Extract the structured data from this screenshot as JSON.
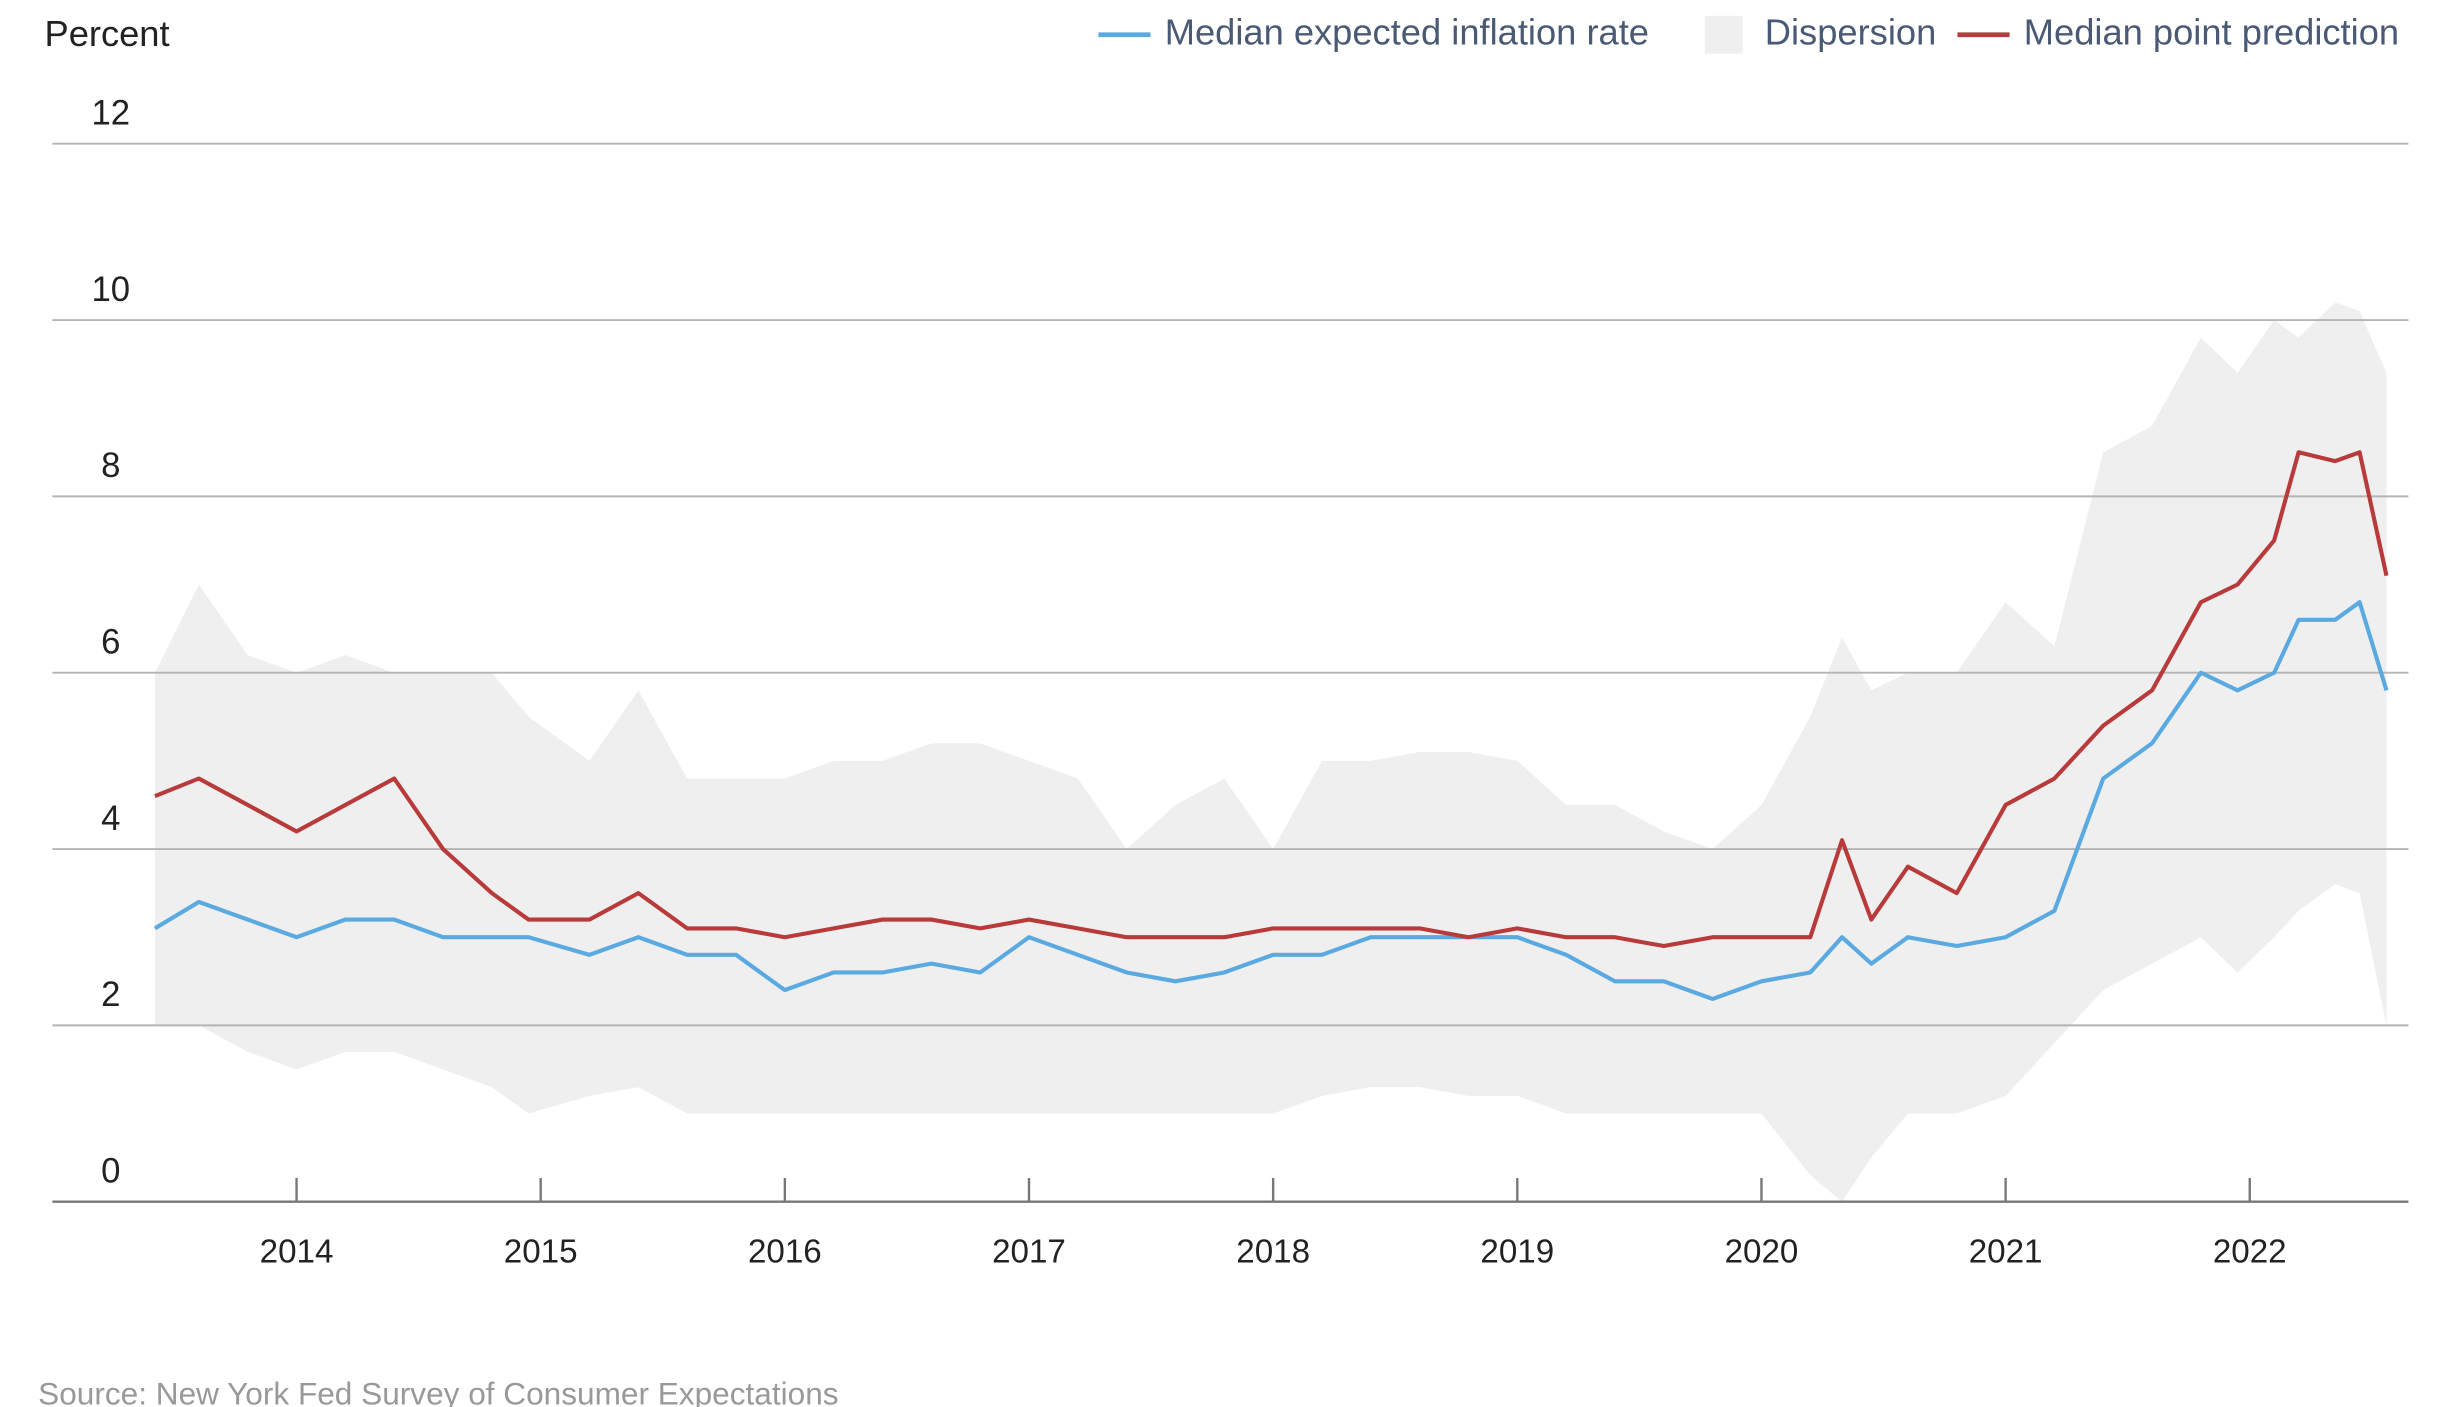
{
  "chart_data": {
    "type": "line",
    "y_label": "Percent",
    "source": "Source: New York Fed Survey of Consumer Expectations",
    "legend": "top-right",
    "grid": true,
    "xlim": [
      2013,
      2022.65
    ],
    "xticks": [
      2014,
      2015,
      2016,
      2017,
      2018,
      2019,
      2020,
      2021,
      2022
    ],
    "ylim": [
      0,
      12
    ],
    "yticks": [
      0,
      2,
      4,
      6,
      8,
      10,
      12
    ],
    "x": [
      2013.42,
      2013.6,
      2013.8,
      2014.0,
      2014.2,
      2014.4,
      2014.6,
      2014.8,
      2014.95,
      2015.2,
      2015.4,
      2015.6,
      2015.8,
      2016.0,
      2016.2,
      2016.4,
      2016.6,
      2016.8,
      2017.0,
      2017.2,
      2017.4,
      2017.6,
      2017.8,
      2018.0,
      2018.2,
      2018.4,
      2018.6,
      2018.8,
      2019.0,
      2019.2,
      2019.4,
      2019.6,
      2019.8,
      2020.0,
      2020.2,
      2020.33,
      2020.45,
      2020.6,
      2020.8,
      2021.0,
      2021.2,
      2021.4,
      2021.6,
      2021.8,
      2021.95,
      2022.1,
      2022.2,
      2022.35,
      2022.45,
      2022.56
    ],
    "series": [
      {
        "name": "Median expected inflation rate",
        "color": "#5aa9e0",
        "values": [
          3.1,
          3.4,
          3.2,
          3.0,
          3.2,
          3.2,
          3.0,
          3.0,
          3.0,
          2.8,
          3.0,
          2.8,
          2.8,
          2.4,
          2.6,
          2.6,
          2.7,
          2.6,
          3.0,
          2.8,
          2.6,
          2.5,
          2.6,
          2.8,
          2.8,
          3.0,
          3.0,
          3.0,
          3.0,
          2.8,
          2.5,
          2.5,
          2.3,
          2.5,
          2.6,
          3.0,
          2.7,
          3.0,
          2.9,
          3.0,
          3.3,
          4.8,
          5.2,
          6.0,
          5.8,
          6.0,
          6.6,
          6.6,
          6.8,
          5.8
        ]
      },
      {
        "name": "Dispersion",
        "color": "#efefef",
        "low": [
          2.0,
          2.0,
          1.7,
          1.5,
          1.7,
          1.7,
          1.5,
          1.3,
          1.0,
          1.2,
          1.3,
          1.0,
          1.0,
          1.0,
          1.0,
          1.0,
          1.0,
          1.0,
          1.0,
          1.0,
          1.0,
          1.0,
          1.0,
          1.0,
          1.2,
          1.3,
          1.3,
          1.2,
          1.2,
          1.0,
          1.0,
          1.0,
          1.0,
          1.0,
          0.3,
          0.0,
          0.5,
          1.0,
          1.0,
          1.2,
          1.8,
          2.4,
          2.7,
          3.0,
          2.6,
          3.0,
          3.3,
          3.6,
          3.5,
          2.0
        ],
        "high": [
          6.0,
          7.0,
          6.2,
          6.0,
          6.2,
          6.0,
          6.0,
          6.0,
          5.5,
          5.0,
          5.8,
          4.8,
          4.8,
          4.8,
          5.0,
          5.0,
          5.2,
          5.2,
          5.0,
          4.8,
          4.0,
          4.5,
          4.8,
          4.0,
          5.0,
          5.0,
          5.1,
          5.1,
          5.0,
          4.5,
          4.5,
          4.2,
          4.0,
          4.5,
          5.5,
          6.4,
          5.8,
          6.0,
          6.0,
          6.8,
          6.3,
          8.5,
          8.8,
          9.8,
          9.4,
          10.0,
          9.8,
          10.2,
          10.1,
          9.4
        ]
      },
      {
        "name": "Median point prediction",
        "color": "#b83a3a",
        "values": [
          4.6,
          4.8,
          4.5,
          4.2,
          4.5,
          4.8,
          4.0,
          3.5,
          3.2,
          3.2,
          3.5,
          3.1,
          3.1,
          3.0,
          3.1,
          3.2,
          3.2,
          3.1,
          3.2,
          3.1,
          3.0,
          3.0,
          3.0,
          3.1,
          3.1,
          3.1,
          3.1,
          3.0,
          3.1,
          3.0,
          3.0,
          2.9,
          3.0,
          3.0,
          3.0,
          4.1,
          3.2,
          3.8,
          3.5,
          4.5,
          4.8,
          5.4,
          5.8,
          6.8,
          7.0,
          7.5,
          8.5,
          8.4,
          8.5,
          7.1
        ]
      }
    ]
  }
}
